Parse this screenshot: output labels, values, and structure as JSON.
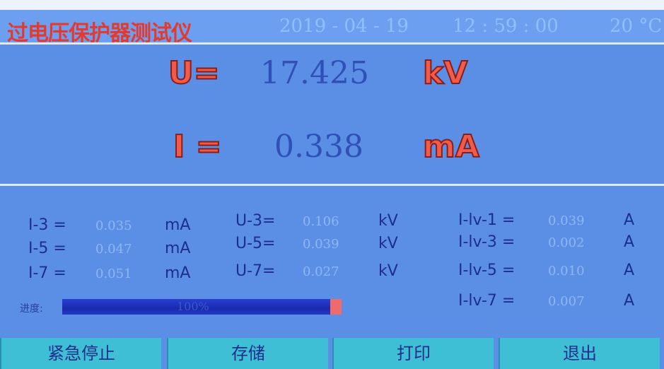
{
  "header": {
    "title": "过电压保护器测试仪",
    "date": "2019 - 04 - 19",
    "time": "12 : 59 : 00",
    "temperature": "20 °C"
  },
  "main": [
    {
      "label": "U=",
      "value": "17.425",
      "unit": "kV"
    },
    {
      "label": "I =",
      "value": "0.338",
      "unit": "mA"
    }
  ],
  "readings": [
    [
      [
        "I-3 =",
        "0.035",
        "mA"
      ],
      [
        "I-5 =",
        "0.047",
        "mA"
      ],
      [
        "I-7 =",
        "0.051",
        "mA"
      ]
    ],
    [
      [
        "U-3=",
        "0.106",
        "kV"
      ],
      [
        "U-5=",
        "0.039",
        "kV"
      ],
      [
        "U-7=",
        "0.027",
        "kV"
      ]
    ],
    [
      [
        "I-lv-1 =",
        "0.039",
        "A"
      ],
      [
        "I-lv-3 =",
        "0.002",
        "A"
      ],
      [
        "I-lv-5 =",
        "0.010",
        "A"
      ],
      [
        "I-lv-7 =",
        "0.007",
        "A"
      ]
    ]
  ],
  "progress": {
    "label": "进度:",
    "text": "100%"
  },
  "buttons": [
    "紧急停止",
    "存储",
    "打印",
    "退出"
  ]
}
